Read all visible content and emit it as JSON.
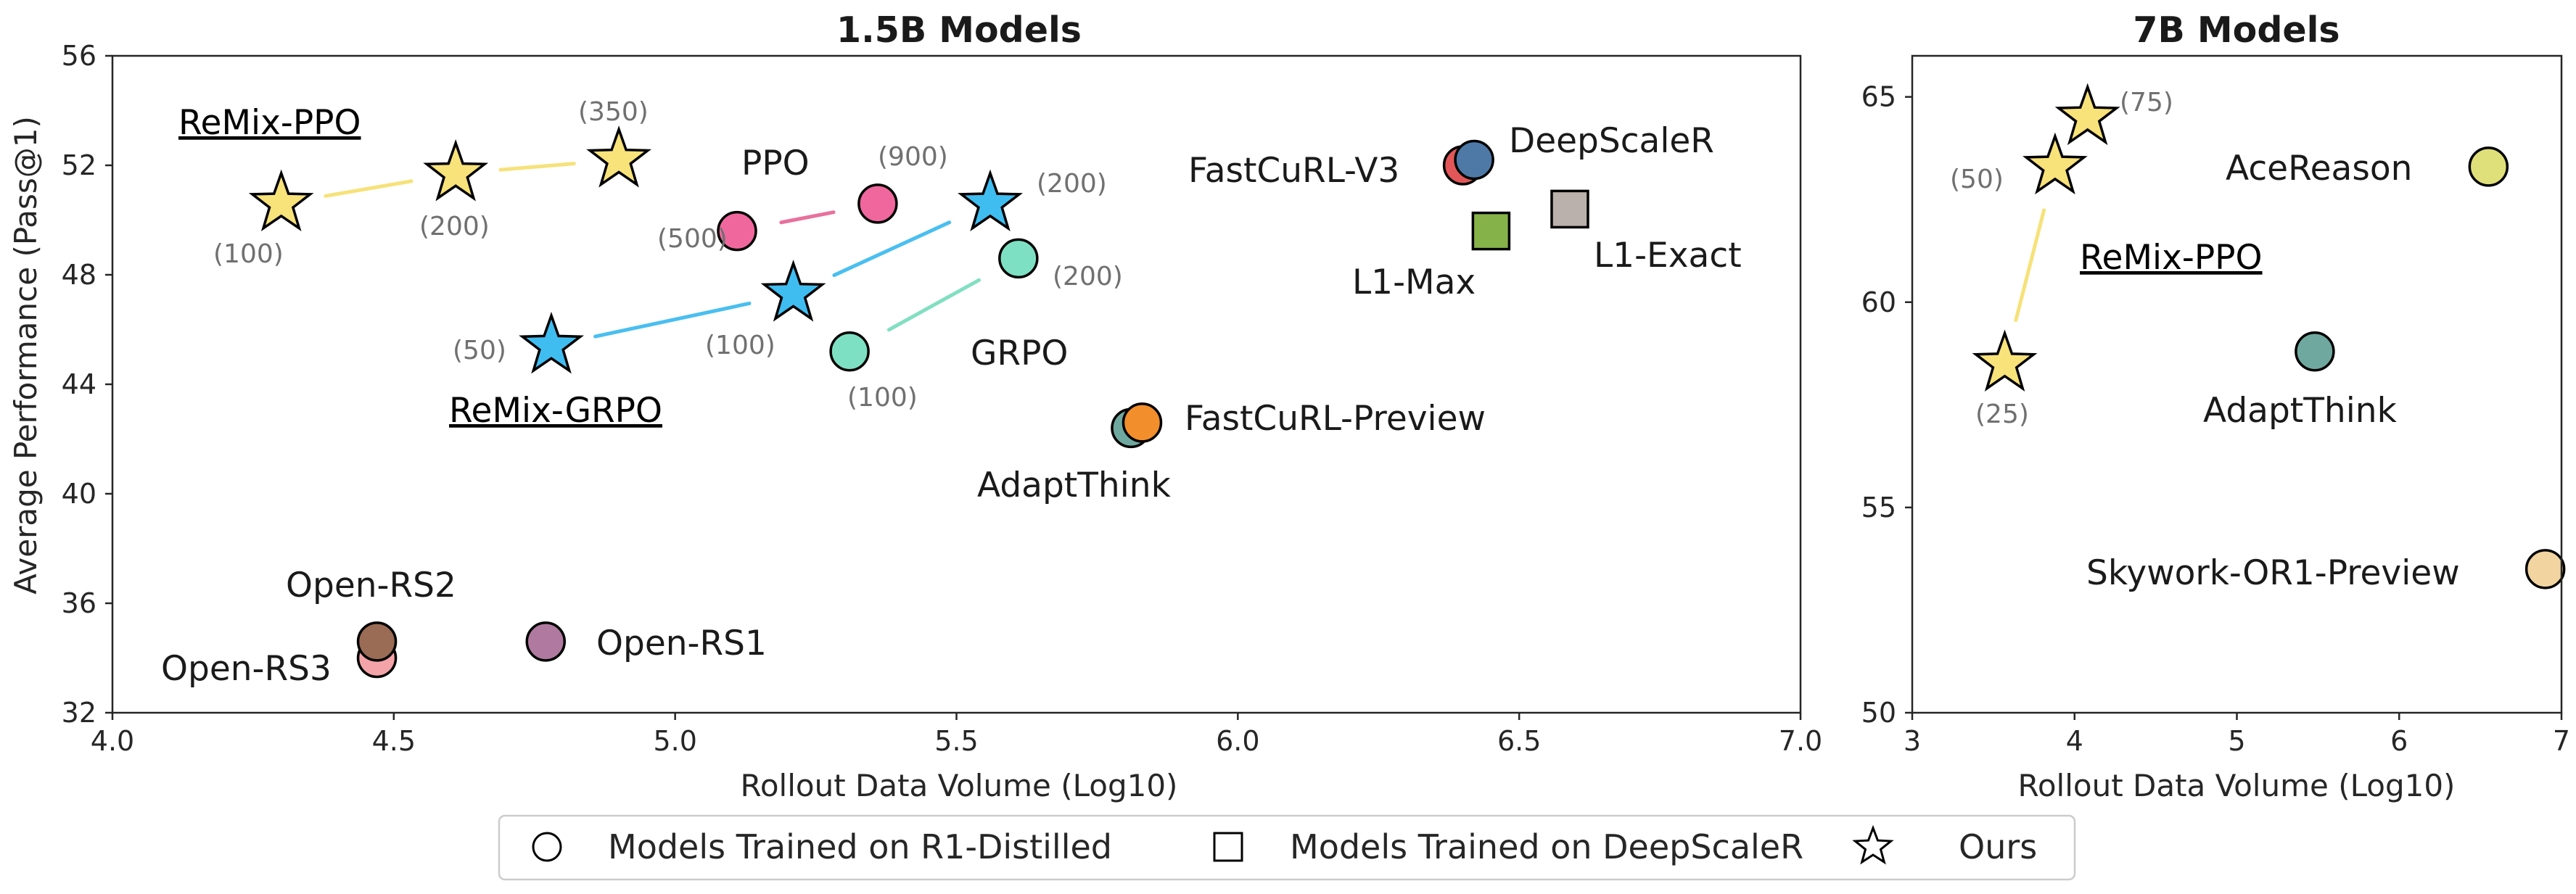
{
  "chart_data": [
    {
      "id": "left",
      "type": "scatter",
      "title": "1.5B Models",
      "xlabel": "Rollout Data Volume (Log10)",
      "ylabel": "Average Performance (Pass@1)",
      "xlim": [
        4.0,
        7.0
      ],
      "ylim": [
        32,
        56
      ],
      "xticks": [
        4.0,
        4.5,
        5.0,
        5.5,
        6.0,
        6.5,
        7.0
      ],
      "xtick_labels": [
        "4.0",
        "4.5",
        "5.0",
        "5.5",
        "6.0",
        "6.5",
        "7.0"
      ],
      "yticks": [
        32,
        36,
        40,
        44,
        48,
        52,
        56
      ],
      "ytick_labels": [
        "32",
        "36",
        "40",
        "44",
        "48",
        "52",
        "56"
      ],
      "points": [
        {
          "name": "Open-RS3",
          "x": 4.47,
          "y": 34.0,
          "shape": "circle",
          "color": "#f4a4a8"
        },
        {
          "name": "Open-RS2",
          "x": 4.47,
          "y": 34.6,
          "shape": "circle",
          "color": "#9a6b55"
        },
        {
          "name": "Open-RS1",
          "x": 4.77,
          "y": 34.6,
          "shape": "circle",
          "color": "#b07aa0"
        },
        {
          "name": "AdaptThink",
          "x": 5.81,
          "y": 42.4,
          "shape": "circle",
          "color": "#6fa89e"
        },
        {
          "name": "FastCuRL-Preview",
          "x": 5.83,
          "y": 42.6,
          "shape": "circle",
          "color": "#f28e2b"
        },
        {
          "name": "FastCuRL-V3",
          "x": 6.4,
          "y": 52.0,
          "shape": "circle",
          "color": "#e15759"
        },
        {
          "name": "DeepScaleR",
          "x": 6.42,
          "y": 52.2,
          "shape": "circle",
          "color": "#4e79a7"
        },
        {
          "name": "L1-Max",
          "x": 6.45,
          "y": 49.6,
          "shape": "square",
          "color": "#86b24a"
        },
        {
          "name": "L1-Exact",
          "x": 6.59,
          "y": 50.4,
          "shape": "square",
          "color": "#bab0ac"
        }
      ],
      "series": [
        {
          "name": "PPO",
          "shape": "circle",
          "color": "#f0679e",
          "line_color": "#e8719b",
          "x": [
            5.11,
            5.36
          ],
          "y": [
            49.6,
            50.6
          ],
          "volumes": [
            "(500)",
            "(900)"
          ]
        },
        {
          "name": "GRPO",
          "shape": "circle",
          "color": "#7ee0c2",
          "line_color": "#82dfc1",
          "x": [
            5.31,
            5.61
          ],
          "y": [
            45.2,
            48.6
          ],
          "volumes": [
            "(100)",
            "(200)"
          ]
        },
        {
          "name": "ReMix-PPO",
          "shape": "star",
          "color": "#f8e27a",
          "line_color": "#f6e27a",
          "x": [
            4.3,
            4.61,
            4.9
          ],
          "y": [
            50.6,
            51.7,
            52.2
          ],
          "volumes": [
            "(100)",
            "(200)",
            "(350)"
          ]
        },
        {
          "name": "ReMix-GRPO",
          "shape": "star",
          "color": "#40bdf0",
          "line_color": "#49bff0",
          "x": [
            4.78,
            5.21,
            5.56
          ],
          "y": [
            45.4,
            47.3,
            50.6
          ],
          "volumes": [
            "(50)",
            "(100)",
            "(200)"
          ]
        }
      ]
    },
    {
      "id": "right",
      "type": "scatter",
      "title": "7B Models",
      "xlabel": "Rollout Data Volume (Log10)",
      "ylabel": "",
      "xlim": [
        3,
        7
      ],
      "ylim": [
        50,
        66
      ],
      "xticks": [
        3,
        4,
        5,
        6,
        7
      ],
      "xtick_labels": [
        "3",
        "4",
        "5",
        "6",
        "7"
      ],
      "yticks": [
        50,
        55,
        60,
        65
      ],
      "ytick_labels": [
        "50",
        "55",
        "60",
        "65"
      ],
      "points": [
        {
          "name": "AceReason",
          "x": 6.55,
          "y": 63.3,
          "shape": "circle",
          "color": "#e0e07a"
        },
        {
          "name": "AdaptThink",
          "x": 5.48,
          "y": 58.8,
          "shape": "circle",
          "color": "#6fa89e"
        },
        {
          "name": "Skywork-OR1-Preview",
          "x": 6.9,
          "y": 53.5,
          "shape": "circle",
          "color": "#f1d4a0"
        }
      ],
      "series": [
        {
          "name": "ReMix-PPO",
          "shape": "star",
          "color": "#f8e27a",
          "line_color": "#f6e27a",
          "x": [
            3.57,
            3.88,
            4.08
          ],
          "y": [
            58.5,
            63.3,
            64.5
          ],
          "volumes": [
            "(25)",
            "(50)",
            "(75)"
          ]
        }
      ]
    }
  ],
  "legend": {
    "items": [
      {
        "label": "Models Trained on R1-Distilled",
        "shape": "circle"
      },
      {
        "label": "Models Trained on DeepScaleR",
        "shape": "square"
      },
      {
        "label": "Ours",
        "shape": "star"
      }
    ]
  }
}
